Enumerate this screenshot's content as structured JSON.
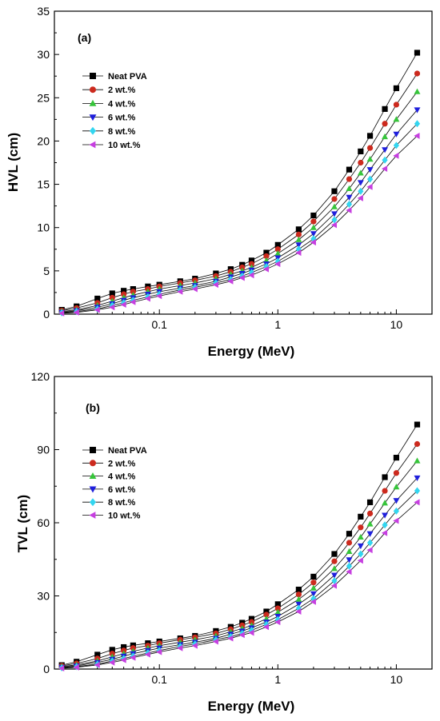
{
  "colors": {
    "neat": "#000000",
    "wt2": "#cc2a1e",
    "wt4": "#36c53a",
    "wt6": "#1f1fdc",
    "wt8": "#33d6f0",
    "wt10": "#c63fe0"
  },
  "chart_data": [
    {
      "type": "line",
      "panel_label": "(a)",
      "xlabel": "Energy (MeV)",
      "ylabel": "HVL (cm)",
      "xscale": "log",
      "xlim": [
        0.013,
        20
      ],
      "ylim": [
        0,
        35
      ],
      "xticks": [
        0.1,
        1,
        10
      ],
      "xtick_labels": [
        "0.1",
        "1",
        "10"
      ],
      "yticks": [
        0,
        5,
        10,
        15,
        20,
        25,
        30,
        35
      ],
      "ytick_labels": [
        "0",
        "5",
        "10",
        "15",
        "20",
        "25",
        "30",
        "35"
      ],
      "grid": false,
      "legend_position": "upper-left",
      "x": [
        0.015,
        0.02,
        0.03,
        0.04,
        0.05,
        0.06,
        0.08,
        0.1,
        0.15,
        0.2,
        0.3,
        0.4,
        0.5,
        0.6,
        0.8,
        1,
        1.5,
        2,
        3,
        4,
        5,
        6,
        8,
        10,
        15
      ],
      "series": [
        {
          "name": "Neat PVA",
          "marker": "square",
          "color": "#000000",
          "values": [
            0.5,
            0.9,
            1.8,
            2.4,
            2.7,
            2.9,
            3.2,
            3.4,
            3.8,
            4.1,
            4.7,
            5.2,
            5.7,
            6.2,
            7.1,
            8.0,
            9.8,
            11.4,
            14.2,
            16.7,
            18.8,
            20.6,
            23.7,
            26.1,
            30.2
          ]
        },
        {
          "name": "2 wt.%",
          "marker": "circle",
          "color": "#cc2a1e",
          "values": [
            0.4,
            0.7,
            1.3,
            1.9,
            2.3,
            2.6,
            2.9,
            3.2,
            3.6,
            3.9,
            4.4,
            4.9,
            5.4,
            5.8,
            6.7,
            7.5,
            9.2,
            10.7,
            13.3,
            15.6,
            17.5,
            19.2,
            22.0,
            24.2,
            27.8
          ]
        },
        {
          "name": "4 wt.%",
          "marker": "triangle-up",
          "color": "#36c53a",
          "values": [
            0.3,
            0.5,
            1.0,
            1.5,
            1.9,
            2.2,
            2.6,
            2.9,
            3.3,
            3.6,
            4.1,
            4.6,
            5.0,
            5.4,
            6.2,
            7.0,
            8.6,
            10.0,
            12.4,
            14.5,
            16.3,
            17.9,
            20.5,
            22.5,
            25.7
          ]
        },
        {
          "name": "6 wt.%",
          "marker": "triangle-down",
          "color": "#1f1fdc",
          "values": [
            0.2,
            0.4,
            0.8,
            1.2,
            1.6,
            1.9,
            2.3,
            2.6,
            3.0,
            3.3,
            3.8,
            4.3,
            4.7,
            5.1,
            5.8,
            6.5,
            8.0,
            9.3,
            11.6,
            13.5,
            15.2,
            16.7,
            19.0,
            20.8,
            23.6
          ]
        },
        {
          "name": "8 wt.%",
          "marker": "diamond",
          "color": "#33d6f0",
          "values": [
            0.15,
            0.3,
            0.6,
            1.0,
            1.3,
            1.6,
            2.0,
            2.3,
            2.8,
            3.1,
            3.6,
            4.0,
            4.4,
            4.8,
            5.5,
            6.1,
            7.5,
            8.7,
            10.9,
            12.7,
            14.2,
            15.6,
            17.8,
            19.5,
            22.0
          ]
        },
        {
          "name": "10 wt.%",
          "marker": "triangle-left",
          "color": "#c63fe0",
          "values": [
            0.1,
            0.2,
            0.5,
            0.8,
            1.1,
            1.4,
            1.8,
            2.1,
            2.6,
            2.9,
            3.4,
            3.8,
            4.2,
            4.5,
            5.2,
            5.8,
            7.1,
            8.3,
            10.3,
            12.0,
            13.4,
            14.7,
            16.8,
            18.3,
            20.6
          ]
        }
      ]
    },
    {
      "type": "line",
      "panel_label": "(b)",
      "xlabel": "Energy (MeV)",
      "ylabel": "TVL (cm)",
      "xscale": "log",
      "xlim": [
        0.013,
        20
      ],
      "ylim": [
        0,
        120
      ],
      "xticks": [
        0.1,
        1,
        10
      ],
      "xtick_labels": [
        "0.1",
        "1",
        "10"
      ],
      "yticks": [
        0,
        30,
        60,
        90,
        120
      ],
      "ytick_labels": [
        "0",
        "30",
        "60",
        "90",
        "120"
      ],
      "grid": false,
      "legend_position": "upper-left",
      "x": [
        0.015,
        0.02,
        0.03,
        0.04,
        0.05,
        0.06,
        0.08,
        0.1,
        0.15,
        0.2,
        0.3,
        0.4,
        0.5,
        0.6,
        0.8,
        1,
        1.5,
        2,
        3,
        4,
        5,
        6,
        8,
        10,
        15
      ],
      "series": [
        {
          "name": "Neat PVA",
          "marker": "square",
          "color": "#000000",
          "values": [
            1.6,
            3.0,
            5.9,
            7.9,
            9.0,
            9.7,
            10.6,
            11.3,
            12.6,
            13.6,
            15.6,
            17.3,
            19.0,
            20.6,
            23.6,
            26.6,
            32.6,
            37.9,
            47.2,
            55.5,
            62.5,
            68.4,
            78.7,
            86.7,
            100.3
          ]
        },
        {
          "name": "2 wt.%",
          "marker": "circle",
          "color": "#cc2a1e",
          "values": [
            1.3,
            2.3,
            4.3,
            6.3,
            7.6,
            8.6,
            9.6,
            10.6,
            12.0,
            13.0,
            14.6,
            16.3,
            17.9,
            19.3,
            22.3,
            24.9,
            30.6,
            35.5,
            44.2,
            51.8,
            58.1,
            63.8,
            73.1,
            80.4,
            92.3
          ]
        },
        {
          "name": "4 wt.%",
          "marker": "triangle-up",
          "color": "#36c53a",
          "values": [
            1.0,
            1.7,
            3.3,
            5.0,
            6.3,
            7.3,
            8.6,
            9.6,
            11.0,
            12.0,
            13.6,
            15.3,
            16.6,
            17.9,
            20.6,
            23.3,
            28.6,
            33.2,
            41.2,
            48.2,
            54.1,
            59.5,
            68.1,
            74.7,
            85.4
          ]
        },
        {
          "name": "6 wt.%",
          "marker": "triangle-down",
          "color": "#1f1fdc",
          "values": [
            0.7,
            1.3,
            2.7,
            4.0,
            5.3,
            6.3,
            7.6,
            8.6,
            10.0,
            11.0,
            12.6,
            14.3,
            15.6,
            16.9,
            19.3,
            21.6,
            26.6,
            30.9,
            38.5,
            44.8,
            50.5,
            55.5,
            63.1,
            69.1,
            78.4
          ]
        },
        {
          "name": "8 wt.%",
          "marker": "diamond",
          "color": "#33d6f0",
          "values": [
            0.5,
            1.0,
            2.0,
            3.3,
            4.3,
            5.3,
            6.6,
            7.6,
            9.3,
            10.3,
            12.0,
            13.3,
            14.6,
            15.9,
            18.3,
            20.3,
            24.9,
            28.9,
            36.2,
            42.2,
            47.2,
            51.8,
            59.1,
            64.8,
            73.1
          ]
        },
        {
          "name": "10 wt.%",
          "marker": "triangle-left",
          "color": "#c63fe0",
          "values": [
            0.3,
            0.7,
            1.7,
            2.7,
            3.7,
            4.7,
            6.0,
            7.0,
            8.6,
            9.6,
            11.3,
            12.6,
            14.0,
            14.9,
            17.3,
            19.3,
            23.6,
            27.6,
            34.2,
            39.9,
            44.5,
            48.8,
            55.8,
            60.8,
            68.4
          ]
        }
      ]
    }
  ]
}
